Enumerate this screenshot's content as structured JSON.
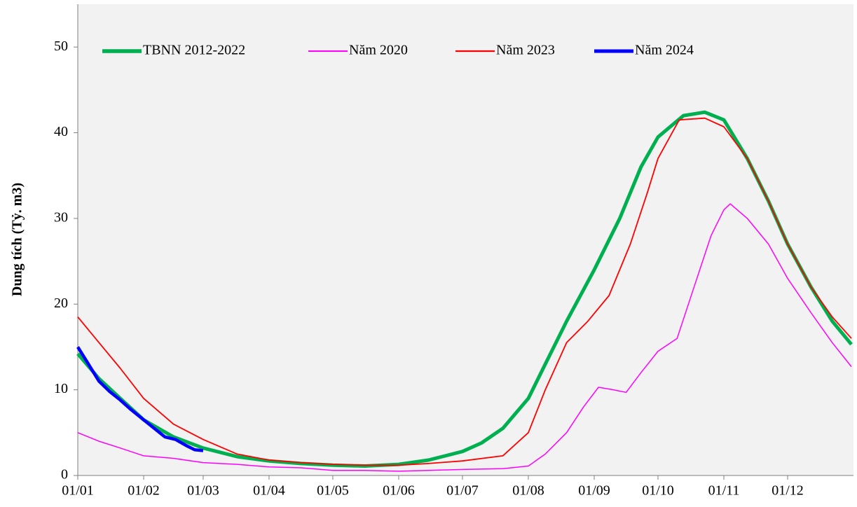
{
  "chart_data": {
    "type": "line",
    "y_label": "Dung tích (Tỷ. m3)",
    "xlim": [
      0,
      365
    ],
    "xticks": [
      {
        "value": 0,
        "label": "01/01"
      },
      {
        "value": 31,
        "label": "01/02"
      },
      {
        "value": 59,
        "label": "01/03"
      },
      {
        "value": 90,
        "label": "01/04"
      },
      {
        "value": 120,
        "label": "01/05"
      },
      {
        "value": 151,
        "label": "01/06"
      },
      {
        "value": 181,
        "label": "01/07"
      },
      {
        "value": 212,
        "label": "01/08"
      },
      {
        "value": 243,
        "label": "01/09"
      },
      {
        "value": 273,
        "label": "01/10"
      },
      {
        "value": 304,
        "label": "01/11"
      },
      {
        "value": 334,
        "label": "01/12"
      }
    ],
    "ylim": [
      0,
      55
    ],
    "yticks": [
      0,
      10,
      20,
      30,
      40,
      50
    ],
    "grid": false,
    "legend": "top",
    "series": [
      {
        "name": "TBNN 2012-2022",
        "color": "#00b050",
        "x": [
          0,
          10,
          20,
          31,
          45,
          59,
          75,
          90,
          105,
          120,
          135,
          151,
          165,
          181,
          190,
          200,
          212,
          220,
          230,
          243,
          255,
          265,
          273,
          285,
          295,
          304,
          315,
          325,
          334,
          345,
          355,
          364
        ],
        "values": [
          14.2,
          11.3,
          9.0,
          6.5,
          4.5,
          3.2,
          2.2,
          1.7,
          1.4,
          1.2,
          1.1,
          1.3,
          1.8,
          2.8,
          3.8,
          5.5,
          9,
          13,
          18,
          24,
          30,
          36,
          39.5,
          42,
          42.4,
          41.5,
          37,
          32,
          27,
          22,
          18,
          15.3
        ]
      },
      {
        "name": "Năm 2020",
        "color": "#ff00ff",
        "x": [
          0,
          10,
          20,
          31,
          45,
          59,
          75,
          90,
          105,
          120,
          135,
          151,
          165,
          181,
          200,
          212,
          220,
          230,
          238,
          245,
          252,
          258,
          265,
          273,
          282,
          290,
          298,
          304,
          307,
          315,
          325,
          334,
          345,
          355,
          364
        ],
        "values": [
          5,
          4,
          3.2,
          2.3,
          2,
          1.5,
          1.3,
          1.0,
          0.9,
          0.6,
          0.6,
          0.5,
          0.6,
          0.7,
          0.8,
          1.1,
          2.5,
          5,
          8,
          10.3,
          10,
          9.7,
          12,
          14.5,
          16,
          22,
          28,
          31,
          31.7,
          30,
          27,
          23,
          19,
          15.5,
          12.7
        ]
      },
      {
        "name": "Năm 2023",
        "color": "#ff0000",
        "x": [
          0,
          10,
          20,
          31,
          45,
          59,
          75,
          90,
          105,
          120,
          135,
          151,
          165,
          181,
          200,
          212,
          220,
          230,
          240,
          250,
          260,
          268,
          273,
          283,
          295,
          304,
          315,
          325,
          334,
          345,
          355,
          364
        ],
        "values": [
          18.5,
          15.5,
          12.5,
          9,
          6,
          4.2,
          2.5,
          1.8,
          1.5,
          1.3,
          1.2,
          1.2,
          1.4,
          1.7,
          2.3,
          5,
          10,
          15.5,
          18,
          21,
          27,
          33,
          37,
          41.5,
          41.7,
          40.7,
          37,
          32,
          27,
          22,
          18.5,
          16
        ]
      },
      {
        "name": "Năm 2024",
        "color": "#0000ff",
        "x": [
          0,
          5,
          10,
          15,
          20,
          25,
          31,
          36,
          41,
          46,
          51,
          55,
          59
        ],
        "values": [
          15,
          13,
          11,
          9.8,
          8.8,
          7.7,
          6.5,
          5.5,
          4.5,
          4.2,
          3.5,
          3.0,
          2.9
        ]
      }
    ]
  }
}
